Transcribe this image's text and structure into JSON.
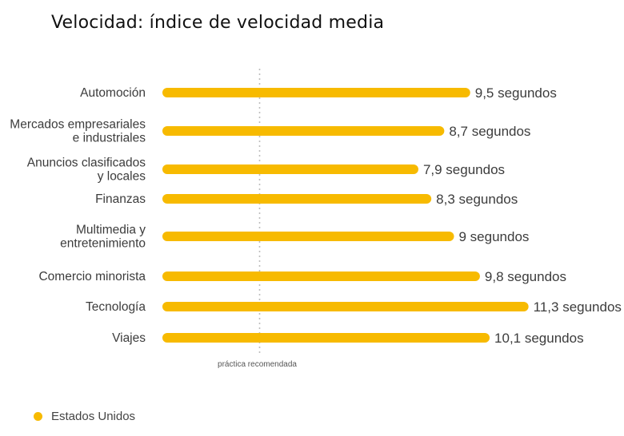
{
  "chart_data": {
    "type": "bar",
    "orientation": "horizontal",
    "title": "Velocidad: índice de velocidad media",
    "categories": [
      [
        "Automoción"
      ],
      [
        "Mercados empresariales",
        "e industriales"
      ],
      [
        "Anuncios clasificados",
        "y locales"
      ],
      [
        "Finanzas"
      ],
      [
        "Multimedia y",
        "entretenimiento"
      ],
      [
        "Comercio minorista"
      ],
      [
        "Tecnología"
      ],
      [
        "Viajes"
      ]
    ],
    "series": [
      {
        "name": "Estados Unidos",
        "color": "#F7BA00",
        "values": [
          9.5,
          8.7,
          7.9,
          8.3,
          9,
          9.8,
          11.3,
          10.1
        ],
        "value_labels": [
          "9,5 segundos",
          "8,7 segundos",
          "7,9 segundos",
          "8,3 segundos",
          "9 segundos",
          "9,8 segundos",
          "11,3 segundos",
          "10,1 segundos"
        ]
      }
    ],
    "reference_line": {
      "value": 3,
      "label": "práctica recomendada",
      "style": "dotted"
    },
    "xlim": [
      0,
      11.3
    ],
    "grid": false,
    "legend": {
      "position": "bottom-left"
    }
  }
}
